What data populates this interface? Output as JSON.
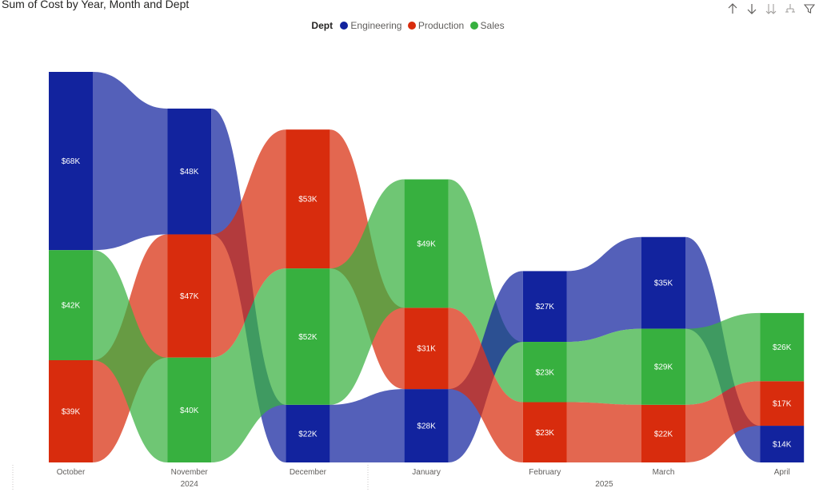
{
  "title": "Sum of Cost by Year, Month and Dept",
  "legend": {
    "title": "Dept",
    "items": [
      {
        "label": "Engineering",
        "color": "#12239e"
      },
      {
        "label": "Production",
        "color": "#d82c0d"
      },
      {
        "label": "Sales",
        "color": "#37b03f"
      }
    ]
  },
  "toolbar": [
    {
      "icon": "arrow-up-icon"
    },
    {
      "icon": "arrow-down-icon"
    },
    {
      "icon": "double-arrow-down-icon"
    },
    {
      "icon": "expand-hierarchy-icon"
    },
    {
      "icon": "filter-icon"
    }
  ],
  "chart_data": {
    "type": "ribbon",
    "title": "Sum of Cost by Year, Month and Dept",
    "categories": [
      "October",
      "November",
      "December",
      "January",
      "February",
      "March",
      "April"
    ],
    "year_groups": [
      {
        "label": "2024",
        "from": 0,
        "to": 2
      },
      {
        "label": "2025",
        "from": 3,
        "to": 6
      }
    ],
    "ranking": "largest on top",
    "series": [
      {
        "name": "Engineering",
        "color": "#12239e",
        "values": [
          68,
          48,
          22,
          28,
          27,
          35,
          14
        ]
      },
      {
        "name": "Production",
        "color": "#d82c0d",
        "values": [
          39,
          47,
          53,
          31,
          23,
          22,
          17
        ]
      },
      {
        "name": "Sales",
        "color": "#37b03f",
        "values": [
          42,
          40,
          52,
          49,
          23,
          29,
          26
        ]
      }
    ],
    "data_labels": [
      [
        "$68K",
        "$48K",
        "$22K",
        "$28K",
        "$27K",
        "$35K",
        "$14K"
      ],
      [
        "$39K",
        "$47K",
        "$53K",
        "$31K",
        "$23K",
        "$22K",
        "$17K"
      ],
      [
        "$42K",
        "$40K",
        "$52K",
        "$49K",
        "$23K",
        "$29K",
        "$26K"
      ]
    ],
    "unit": "$K",
    "grid": false
  }
}
